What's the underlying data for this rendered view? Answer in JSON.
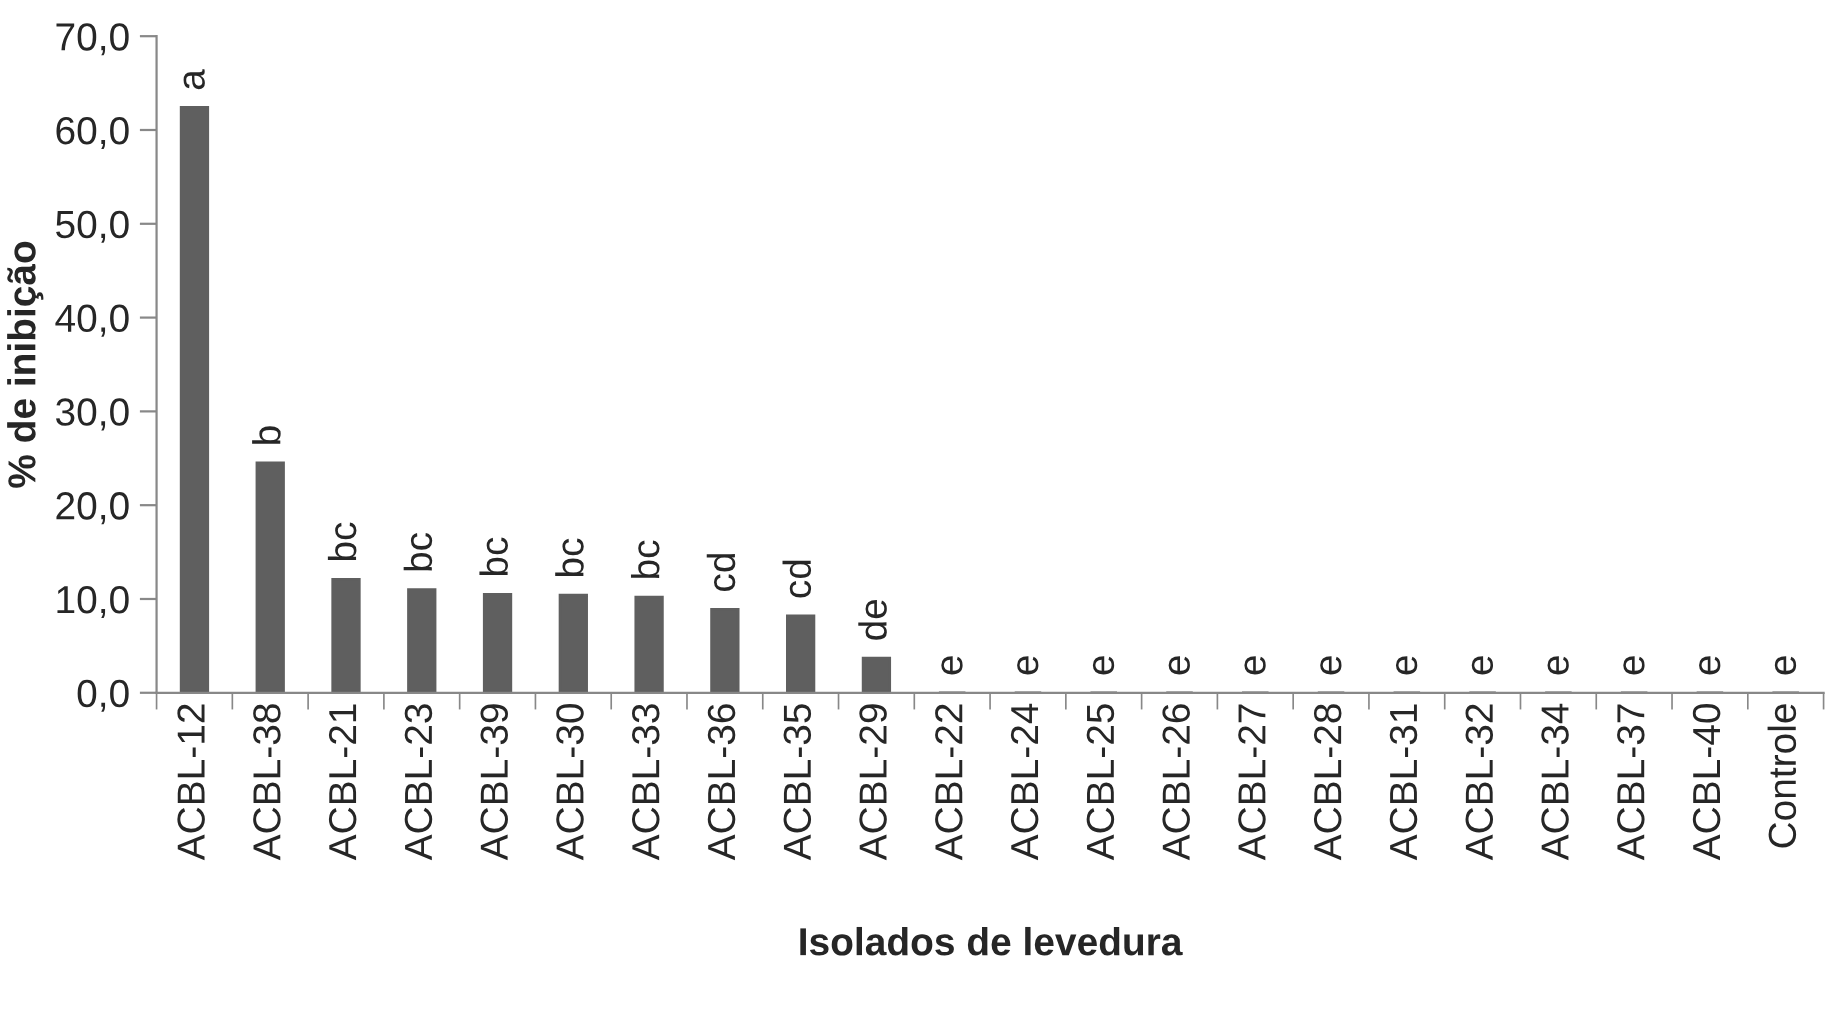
{
  "chart_data": {
    "type": "bar",
    "xlabel": "Isolados de levedura",
    "ylabel": "% de inibição",
    "categories": [
      "ACBL-12",
      "ACBL-38",
      "ACBL-21",
      "ACBL-23",
      "ACBL-39",
      "ACBL-30",
      "ACBL-33",
      "ACBL-36",
      "ACBL-35",
      "ACBL-29",
      "ACBL-22",
      "ACBL-24",
      "ACBL-25",
      "ACBL-26",
      "ACBL-27",
      "ACBL-28",
      "ACBL-31",
      "ACBL-32",
      "ACBL-34",
      "ACBL-37",
      "ACBL-40",
      "Controle"
    ],
    "values": [
      62.4,
      24.5,
      12.1,
      11.0,
      10.5,
      10.4,
      10.2,
      8.9,
      8.2,
      3.7,
      0,
      0,
      0,
      0,
      0,
      0,
      0,
      0,
      0,
      0,
      0,
      0
    ],
    "value_labels": [
      "a",
      "b",
      "bc",
      "bc",
      "bc",
      "bc",
      "bc",
      "cd",
      "cd",
      "de",
      "e",
      "e",
      "e",
      "e",
      "e",
      "e",
      "e",
      "e",
      "e",
      "e",
      "e",
      "e"
    ],
    "color": "#5f5f5f",
    "ylim": [
      0,
      70
    ],
    "yticks": [
      {
        "value": 0,
        "label": "0,0"
      },
      {
        "value": 10,
        "label": "10,0"
      },
      {
        "value": 20,
        "label": "20,0"
      },
      {
        "value": 30,
        "label": "30,0"
      },
      {
        "value": 40,
        "label": "40,0"
      },
      {
        "value": 50,
        "label": "50,0"
      },
      {
        "value": 60,
        "label": "60,0"
      },
      {
        "value": 70,
        "label": "70,0"
      }
    ],
    "grid": false
  }
}
